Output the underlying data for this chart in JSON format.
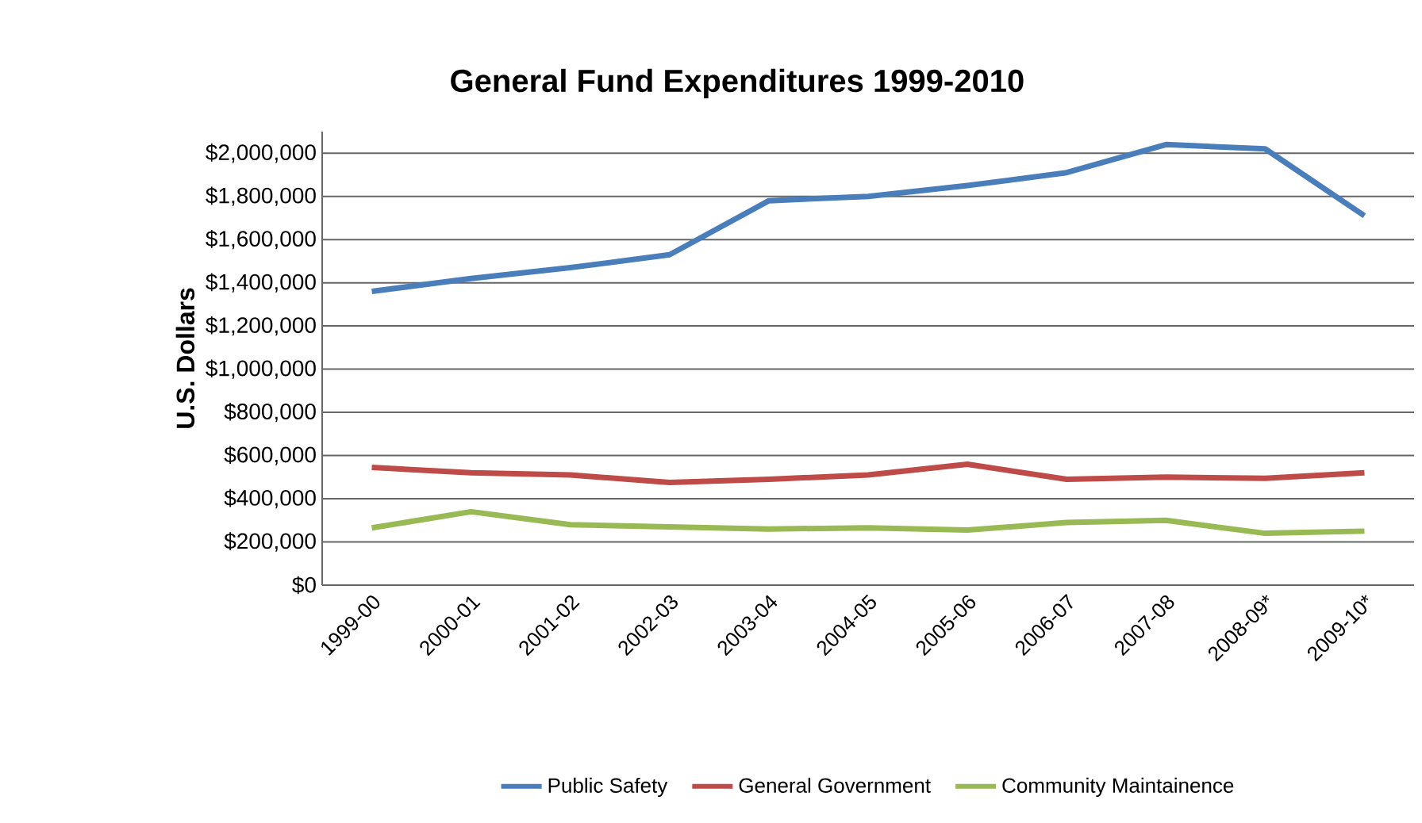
{
  "chart_data": {
    "type": "line",
    "title": "General Fund Expenditures 1999-2010",
    "ylabel": "U.S. Dollars",
    "categories": [
      "1999-00",
      "2000-01",
      "2001-02",
      "2002-03",
      "2003-04",
      "2004-05",
      "2005-06",
      "2006-07",
      "2007-08",
      "2008-09*",
      "2009-10*"
    ],
    "series": [
      {
        "name": "Public Safety",
        "color": "#4a7ebb",
        "values": [
          1360000,
          1420000,
          1470000,
          1530000,
          1780000,
          1800000,
          1850000,
          1910000,
          2040000,
          2020000,
          1710000
        ]
      },
      {
        "name": "General Government",
        "color": "#be4b48",
        "values": [
          545000,
          520000,
          510000,
          475000,
          490000,
          510000,
          560000,
          490000,
          500000,
          495000,
          520000
        ]
      },
      {
        "name": "Community Maintainence",
        "color": "#98b954",
        "values": [
          265000,
          340000,
          280000,
          270000,
          260000,
          265000,
          255000,
          290000,
          300000,
          240000,
          250000
        ]
      }
    ],
    "ylim": [
      0,
      2100000
    ],
    "yticks": [
      {
        "value": 0,
        "label": "$0"
      },
      {
        "value": 200000,
        "label": "$200,000"
      },
      {
        "value": 400000,
        "label": "$400,000"
      },
      {
        "value": 600000,
        "label": "$600,000"
      },
      {
        "value": 800000,
        "label": "$800,000"
      },
      {
        "value": 1000000,
        "label": "$1,000,000"
      },
      {
        "value": 1200000,
        "label": "$1,200,000"
      },
      {
        "value": 1400000,
        "label": "$1,400,000"
      },
      {
        "value": 1600000,
        "label": "$1,600,000"
      },
      {
        "value": 1800000,
        "label": "$1,800,000"
      },
      {
        "value": 2000000,
        "label": "$2,000,000"
      }
    ],
    "grid": "y",
    "legend": "bottom"
  }
}
